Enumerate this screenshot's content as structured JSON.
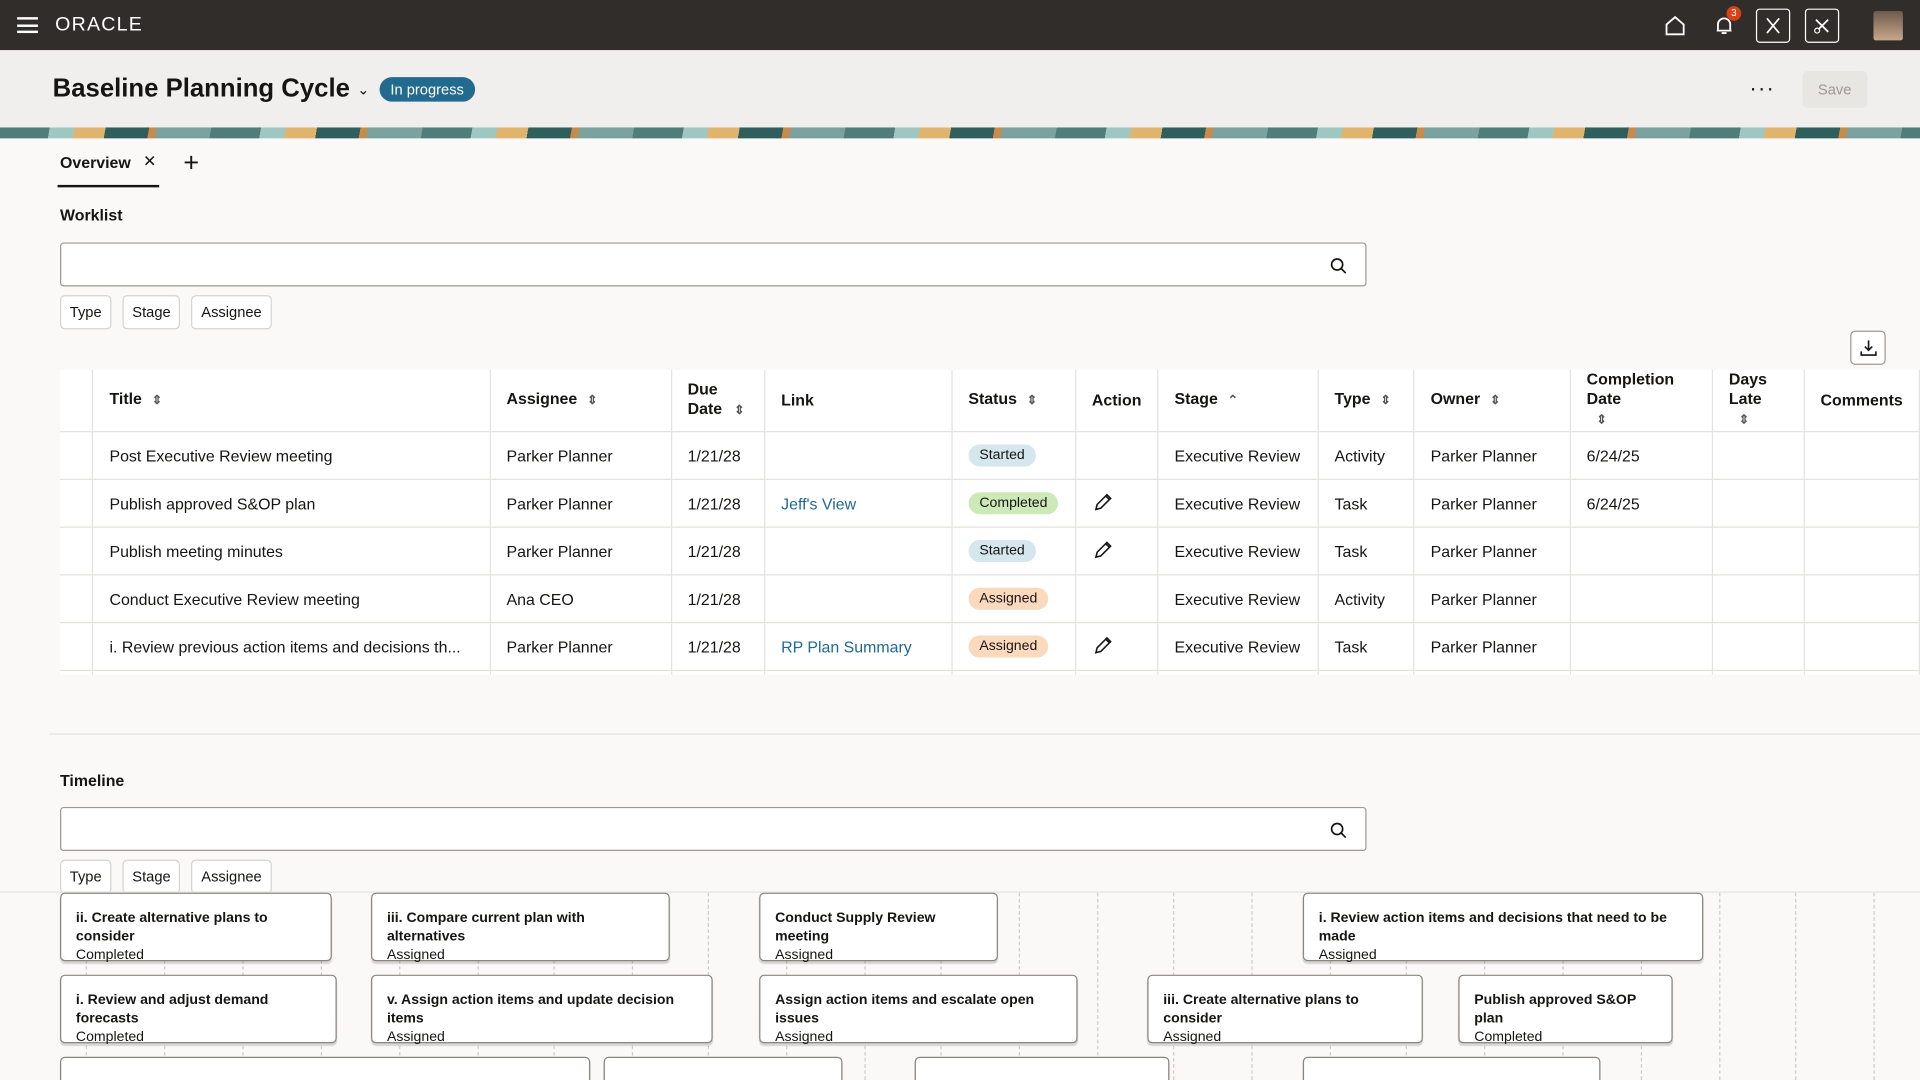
{
  "app": {
    "logo": "ORACLE",
    "notifications": "3"
  },
  "header": {
    "title": "Baseline Planning Cycle",
    "status": "In progress",
    "save": "Save"
  },
  "tabs": [
    {
      "label": "Overview"
    }
  ],
  "worklist": {
    "title": "Worklist",
    "search_placeholder": "",
    "filters": [
      "Type",
      "Stage",
      "Assignee"
    ],
    "columns": [
      "Title",
      "Assignee",
      "Due Date",
      "Link",
      "Status",
      "Action",
      "Stage",
      "Type",
      "Owner",
      "Completion Date",
      "Days Late",
      "Comments"
    ],
    "rows": [
      {
        "title": "Post Executive Review meeting",
        "assignee": "Parker Planner",
        "due": "1/21/28",
        "link": "",
        "status": "Started",
        "edit": false,
        "stage": "Executive Review",
        "type": "Activity",
        "owner": "Parker Planner",
        "completion": "6/24/25"
      },
      {
        "title": "Publish approved S&OP plan",
        "assignee": "Parker Planner",
        "due": "1/21/28",
        "link": "Jeff's View",
        "status": "Completed",
        "edit": true,
        "stage": "Executive Review",
        "type": "Task",
        "owner": "Parker Planner",
        "completion": "6/24/25"
      },
      {
        "title": "Publish meeting minutes",
        "assignee": "Parker Planner",
        "due": "1/21/28",
        "link": "",
        "status": "Started",
        "edit": true,
        "stage": "Executive Review",
        "type": "Task",
        "owner": "Parker Planner",
        "completion": ""
      },
      {
        "title": "Conduct Executive Review meeting",
        "assignee": "Ana CEO",
        "due": "1/21/28",
        "link": "",
        "status": "Assigned",
        "edit": false,
        "stage": "Executive Review",
        "type": "Activity",
        "owner": "Parker Planner",
        "completion": ""
      },
      {
        "title": "i. Review previous action items and decisions th...",
        "assignee": "Parker Planner",
        "due": "1/21/28",
        "link": "RP Plan Summary",
        "status": "Assigned",
        "edit": true,
        "stage": "Executive Review",
        "type": "Task",
        "owner": "Parker Planner",
        "completion": ""
      }
    ]
  },
  "status_colors": {
    "Started": "#d5e6ec",
    "Completed": "#cde9b8",
    "Assigned": "#fbd9bd"
  },
  "timeline": {
    "title": "Timeline",
    "search_placeholder": "",
    "filters": [
      "Type",
      "Stage",
      "Assignee"
    ],
    "cards": [
      {
        "title": "ii. Create alternative plans to consider",
        "status": "Completed"
      },
      {
        "title": "iii. Compare current plan with alternatives",
        "status": "Assigned"
      },
      {
        "title": "Conduct Supply Review meeting",
        "status": "Assigned"
      },
      {
        "title": "i. Review action items and decisions that need to be made",
        "status": "Assigned"
      },
      {
        "title": "i. Review and adjust demand forecasts",
        "status": "Completed"
      },
      {
        "title": "v. Assign action items and update decision items",
        "status": "Assigned"
      },
      {
        "title": "Assign action items and escalate open issues",
        "status": "Assigned"
      },
      {
        "title": "iii. Create alternative plans to consider",
        "status": "Assigned"
      },
      {
        "title": "Publish approved S&OP plan",
        "status": "Completed"
      }
    ]
  }
}
